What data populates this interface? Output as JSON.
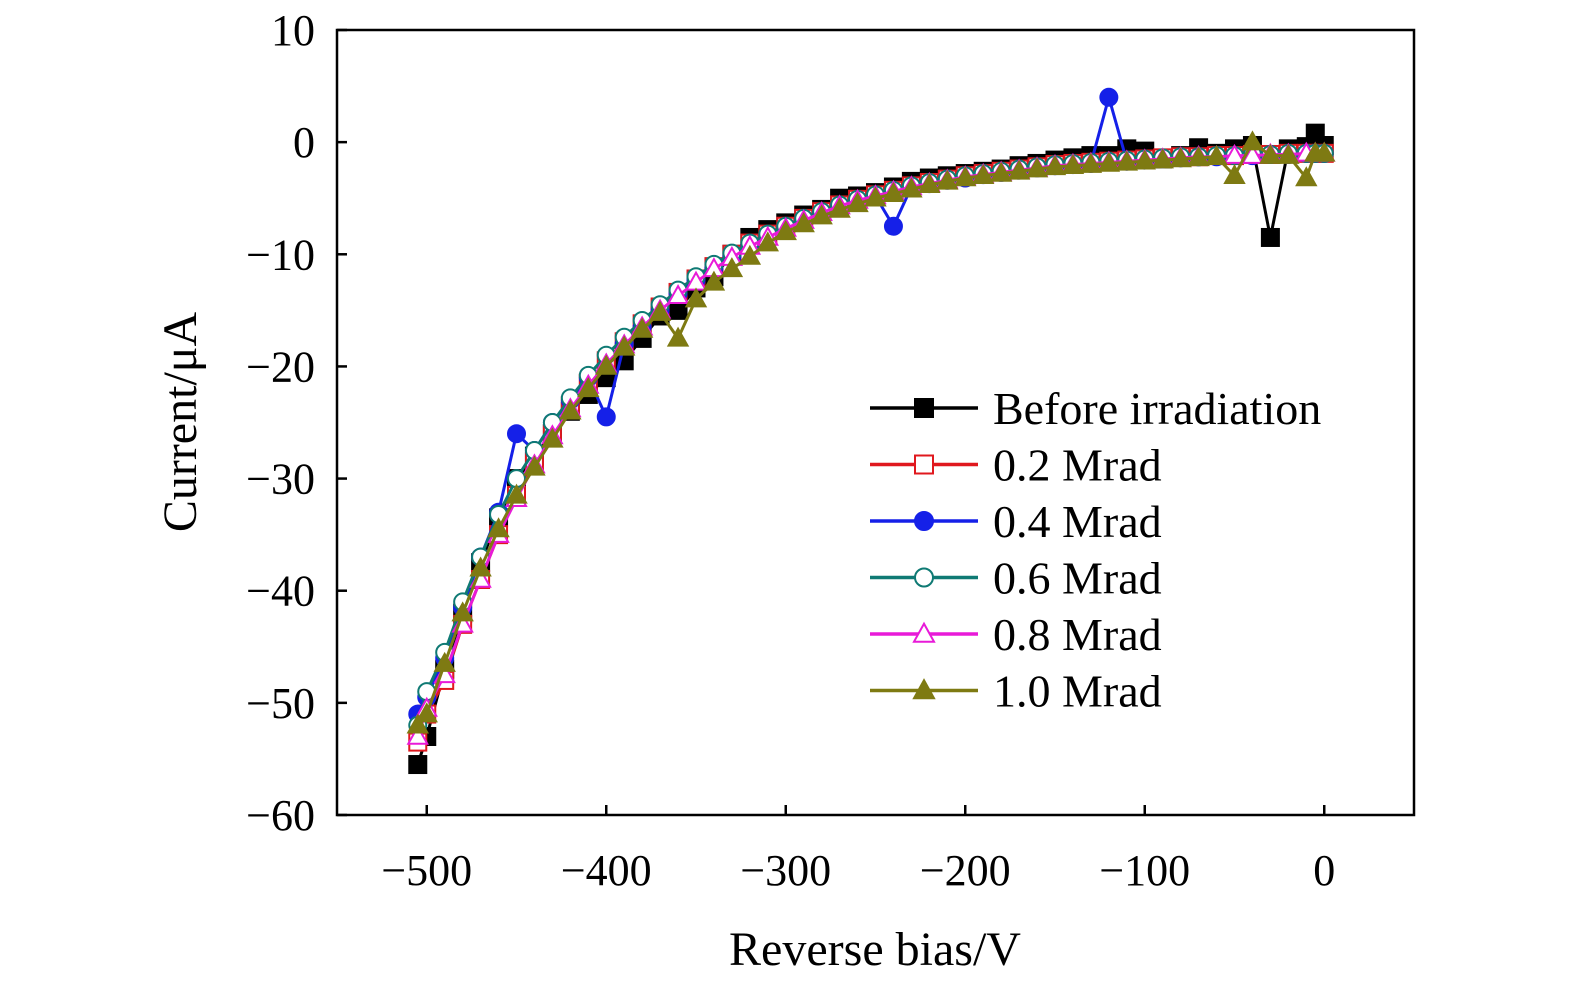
{
  "chart_data": {
    "type": "line",
    "title": "",
    "xlabel": "Reverse bias/V",
    "ylabel": "Current/μA",
    "xlim": [
      -550,
      50
    ],
    "ylim": [
      -60,
      10
    ],
    "xticks": [
      -500,
      -400,
      -300,
      -200,
      -100,
      0
    ],
    "yticks": [
      10,
      0,
      -10,
      -20,
      -30,
      -40,
      -50,
      -60
    ],
    "xtick_labels": [
      "−500",
      "−400",
      "−300",
      "−200",
      "−100",
      "0"
    ],
    "ytick_labels": [
      "10",
      "0",
      "−10",
      "−20",
      "−30",
      "−40",
      "−50",
      "−60"
    ],
    "grid": false,
    "legend_position": "right-middle",
    "x": [
      -505,
      -500,
      -490,
      -480,
      -470,
      -460,
      -450,
      -440,
      -430,
      -420,
      -410,
      -400,
      -390,
      -380,
      -370,
      -360,
      -350,
      -340,
      -330,
      -320,
      -310,
      -300,
      -290,
      -280,
      -270,
      -260,
      -250,
      -240,
      -230,
      -220,
      -210,
      -200,
      -190,
      -180,
      -170,
      -160,
      -150,
      -140,
      -130,
      -120,
      -110,
      -100,
      -90,
      -80,
      -70,
      -60,
      -50,
      -40,
      -30,
      -20,
      -10,
      -5,
      0
    ],
    "series": [
      {
        "name": "Before irradiation",
        "color": "#000000",
        "marker": "square-filled",
        "values": [
          -55.5,
          -53,
          -47,
          -42,
          -37.5,
          -33.5,
          -30,
          -28,
          -26,
          -24,
          -22.5,
          -21,
          -19.5,
          -17.5,
          -15.5,
          -15,
          -13,
          -12,
          -10,
          -8.5,
          -7.8,
          -7.2,
          -6.5,
          -6,
          -5,
          -4.8,
          -4.5,
          -4,
          -3.5,
          -3.2,
          -3,
          -2.8,
          -2.6,
          -2.4,
          -2.1,
          -1.9,
          -1.6,
          -1.4,
          -1.2,
          -1.2,
          -0.6,
          -0.8,
          -1.5,
          -1.2,
          -0.5,
          -1,
          -0.6,
          -0.3,
          -8.5,
          -0.6,
          -0.4,
          0.8,
          -0.3
        ]
      },
      {
        "name": "0.2 Mrad",
        "color": "#e0181e",
        "marker": "square-open",
        "values": [
          -53.5,
          -51,
          -48,
          -43,
          -39,
          -35,
          -31.5,
          -28.5,
          -26,
          -23.5,
          -21.5,
          -19.5,
          -17.8,
          -16.2,
          -14.7,
          -13.4,
          -12.2,
          -11.1,
          -10,
          -9,
          -8.2,
          -7.5,
          -6.8,
          -6.2,
          -5.6,
          -5.1,
          -4.7,
          -4.3,
          -3.9,
          -3.6,
          -3.3,
          -3,
          -2.8,
          -2.6,
          -2.4,
          -2.2,
          -2,
          -1.9,
          -1.8,
          -1.7,
          -1.6,
          -1.5,
          -1.4,
          -1.3,
          -1.3,
          -1.2,
          -1.2,
          -1.1,
          -1.1,
          -1,
          -1,
          -1,
          -1
        ]
      },
      {
        "name": "0.4 Mrad",
        "color": "#1520e8",
        "marker": "circle-filled",
        "values": [
          -51,
          -49.5,
          -46,
          -41.5,
          -37,
          -33,
          -26,
          -27.5,
          -25,
          -23,
          -21,
          -24.5,
          -18,
          -16.5,
          -15,
          -13.5,
          -12.3,
          -11.2,
          -10.2,
          -9.2,
          -8.4,
          -7.6,
          -6.9,
          -6.3,
          -5.7,
          -5.2,
          -4.8,
          -7.5,
          -4,
          -3.7,
          -3.4,
          -3.2,
          -2.9,
          -2.7,
          -2.5,
          -2.3,
          -2.1,
          -2,
          -1.9,
          4,
          -1.7,
          -1.6,
          -1.5,
          -1.4,
          -1.3,
          -1.3,
          -1.2,
          -1.2,
          -1.1,
          -1.1,
          -1,
          -1,
          -1
        ]
      },
      {
        "name": "0.6 Mrad",
        "color": "#0f7a74",
        "marker": "circle-open",
        "values": [
          -52,
          -49,
          -45.5,
          -41,
          -37,
          -33.2,
          -30,
          -27.5,
          -25,
          -22.8,
          -20.8,
          -19,
          -17.4,
          -15.9,
          -14.5,
          -13.2,
          -12,
          -10.9,
          -9.9,
          -9,
          -8.2,
          -7.5,
          -6.8,
          -6.2,
          -5.6,
          -5.1,
          -4.7,
          -4.3,
          -3.9,
          -3.6,
          -3.3,
          -3,
          -2.8,
          -2.6,
          -2.4,
          -2.2,
          -2,
          -1.9,
          -1.8,
          -1.7,
          -1.6,
          -1.5,
          -1.4,
          -1.3,
          -1.3,
          -1.2,
          -1.2,
          -1.1,
          -1.1,
          -1,
          -1,
          -1,
          -1
        ]
      },
      {
        "name": "0.8 Mrad",
        "color": "#e81ad8",
        "marker": "triangle-open",
        "values": [
          -53,
          -50.5,
          -47.5,
          -43,
          -39,
          -35,
          -31.8,
          -28.8,
          -26.2,
          -23.8,
          -21.7,
          -19.8,
          -18.1,
          -16.5,
          -15,
          -13.7,
          -12.5,
          -11.3,
          -10.3,
          -9.3,
          -8.5,
          -7.7,
          -7,
          -6.3,
          -5.7,
          -5.2,
          -4.8,
          -4.4,
          -4,
          -3.7,
          -3.4,
          -3.1,
          -2.9,
          -2.7,
          -2.5,
          -2.3,
          -2.1,
          -2,
          -1.9,
          -1.8,
          -1.7,
          -1.6,
          -1.5,
          -1.4,
          -1.3,
          -1.3,
          -1.2,
          -1.2,
          -1.1,
          -1.1,
          -1,
          -1,
          -1
        ]
      },
      {
        "name": "1.0 Mrad",
        "color": "#7e7a12",
        "marker": "triangle-filled",
        "values": [
          -52,
          -51,
          -46.5,
          -42,
          -38,
          -34.5,
          -31.5,
          -29,
          -26.5,
          -24,
          -22,
          -20,
          -18.3,
          -16.7,
          -15.2,
          -17.5,
          -14,
          -12.5,
          -11.3,
          -10.2,
          -9,
          -8,
          -7.3,
          -6.6,
          -6,
          -5.5,
          -5,
          -4.6,
          -4.2,
          -3.8,
          -3.5,
          -3.2,
          -3,
          -2.8,
          -2.6,
          -2.4,
          -2.2,
          -2.1,
          -2,
          -1.9,
          -1.8,
          -1.7,
          -1.6,
          -1.5,
          -1.4,
          -1.3,
          -3,
          0,
          -1.2,
          -1.2,
          -3.2,
          -1,
          -1
        ]
      }
    ]
  }
}
